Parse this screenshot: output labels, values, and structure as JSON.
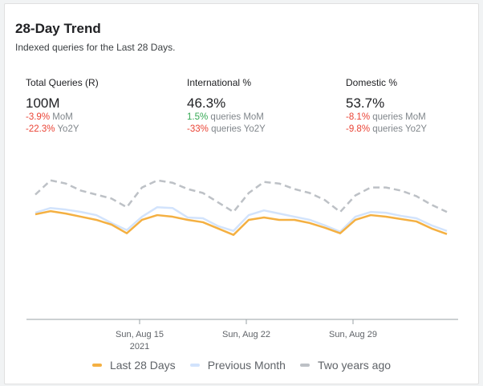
{
  "header": {
    "title": "28-Day Trend",
    "subtitle": "Indexed queries for the Last 28 Days."
  },
  "metrics": [
    {
      "label": "Total Queries (R)",
      "value": "100M",
      "mom_change": "-3.9%",
      "mom_text": "MoM",
      "yoy_change": "-22.3%",
      "yoy_text": "Yo2Y"
    },
    {
      "label": "International %",
      "value": "46.3%",
      "mom_change": "1.5%",
      "mom_text": "queries MoM",
      "yoy_change": "-33%",
      "yoy_text": "queries Yo2Y"
    },
    {
      "label": "Domestic %",
      "value": "53.7%",
      "mom_change": "-8.1%",
      "mom_text": "queries MoM",
      "yoy_change": "-9.8%",
      "yoy_text": "queries Yo2Y"
    }
  ],
  "colors": {
    "negative": "#ea4335",
    "positive": "#34a853"
  },
  "chart_data": {
    "type": "line",
    "x": [
      "Aug 8",
      "Aug 9",
      "Aug 10",
      "Aug 11",
      "Aug 12",
      "Aug 13",
      "Aug 14",
      "Aug 15",
      "Aug 16",
      "Aug 17",
      "Aug 18",
      "Aug 19",
      "Aug 20",
      "Aug 21",
      "Aug 22",
      "Aug 23",
      "Aug 24",
      "Aug 25",
      "Aug 26",
      "Aug 27",
      "Aug 28",
      "Aug 29",
      "Aug 30",
      "Aug 31",
      "Sep 1",
      "Sep 2",
      "Sep 3",
      "Sep 4"
    ],
    "x_tick_labels": [
      {
        "index": 7,
        "line1": "Sun, Aug 15",
        "line2": "2021"
      },
      {
        "index": 14,
        "line1": "Sun, Aug 22",
        "line2": ""
      },
      {
        "index": 21,
        "line1": "Sun, Aug 29",
        "line2": ""
      }
    ],
    "y_axis_shown": false,
    "ylim": [
      0,
      190
    ],
    "grid": false,
    "legend_position": "bottom",
    "series": [
      {
        "name": "Two years ago",
        "color": "#bdc1c6",
        "dashed": true,
        "values": [
          157,
          175,
          171,
          162,
          157,
          152,
          141,
          166,
          175,
          172,
          164,
          159,
          147,
          135,
          159,
          173,
          171,
          164,
          159,
          150,
          135,
          156,
          166,
          166,
          162,
          155,
          144,
          135
        ]
      },
      {
        "name": "Previous Month",
        "color": "#d2e3fc",
        "dashed": false,
        "values": [
          134,
          140,
          138,
          135,
          131,
          121,
          112,
          129,
          141,
          140,
          128,
          127,
          117,
          111,
          131,
          137,
          133,
          129,
          125,
          118,
          110,
          129,
          135,
          134,
          130,
          127,
          118,
          111
        ]
      },
      {
        "name": "Last 28 Days",
        "color": "#f4b042",
        "dashed": false,
        "values": [
          132,
          136,
          133,
          129,
          125,
          119,
          108,
          125,
          131,
          129,
          125,
          122,
          114,
          106,
          125,
          128,
          125,
          125,
          121,
          115,
          108,
          125,
          131,
          129,
          126,
          123,
          114,
          107
        ]
      }
    ]
  }
}
